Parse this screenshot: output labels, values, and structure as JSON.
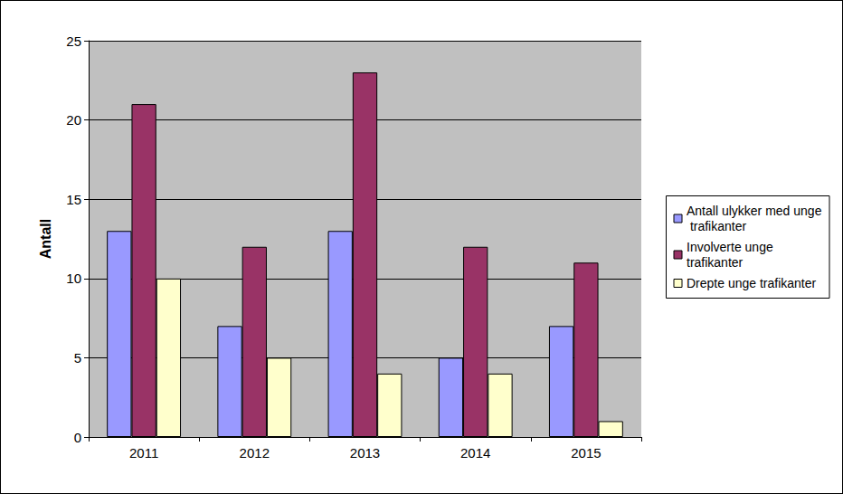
{
  "chart_data": {
    "type": "bar",
    "y_label": "Antall",
    "categories": [
      "2011",
      "2012",
      "2013",
      "2014",
      "2015"
    ],
    "series": [
      {
        "name": "Antall ulykker med unge trafikanter",
        "color": "#9999FF",
        "values": [
          13,
          7,
          13,
          5,
          7
        ]
      },
      {
        "name": "Involverte unge trafikanter",
        "color": "#993366",
        "values": [
          21,
          12,
          23,
          12,
          11
        ]
      },
      {
        "name": "Drepte unge trafikanter",
        "color": "#FFFFCC",
        "values": [
          10,
          5,
          4,
          4,
          1
        ]
      }
    ],
    "ylim": [
      0,
      25
    ],
    "yticks": [
      0,
      5,
      10,
      15,
      20,
      25
    ],
    "grid": true,
    "legend": "right"
  }
}
